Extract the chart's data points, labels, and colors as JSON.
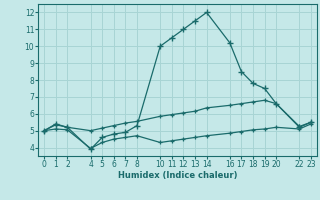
{
  "xlabel": "Humidex (Indice chaleur)",
  "bg_color": "#c5e8e8",
  "grid_color": "#a8d4d4",
  "line_color": "#1a6b6b",
  "xlim": [
    -0.5,
    23.5
  ],
  "ylim": [
    3.5,
    12.5
  ],
  "xticks": [
    0,
    1,
    2,
    4,
    5,
    6,
    7,
    8,
    10,
    11,
    12,
    13,
    14,
    16,
    17,
    18,
    19,
    20,
    22,
    23
  ],
  "yticks": [
    4,
    5,
    6,
    7,
    8,
    9,
    10,
    11,
    12
  ],
  "line1_x": [
    0,
    1,
    2,
    4,
    5,
    6,
    7,
    8,
    10,
    11,
    12,
    13,
    14,
    16,
    17,
    18,
    19,
    20,
    22,
    23
  ],
  "line1_y": [
    5.0,
    5.4,
    5.2,
    3.9,
    4.6,
    4.8,
    4.9,
    5.3,
    10.0,
    10.5,
    11.0,
    11.5,
    12.0,
    10.2,
    8.5,
    7.8,
    7.5,
    6.6,
    5.2,
    5.5
  ],
  "line2_x": [
    0,
    1,
    2,
    4,
    5,
    6,
    7,
    8,
    10,
    11,
    12,
    13,
    14,
    16,
    17,
    18,
    19,
    20,
    22,
    23
  ],
  "line2_y": [
    5.0,
    5.35,
    5.2,
    5.0,
    5.15,
    5.3,
    5.45,
    5.55,
    5.85,
    5.95,
    6.05,
    6.15,
    6.35,
    6.5,
    6.6,
    6.7,
    6.8,
    6.6,
    5.25,
    5.5
  ],
  "line3_x": [
    0,
    1,
    2,
    4,
    5,
    6,
    7,
    8,
    10,
    11,
    12,
    13,
    14,
    16,
    17,
    18,
    19,
    20,
    22,
    23
  ],
  "line3_y": [
    5.0,
    5.1,
    5.05,
    3.95,
    4.3,
    4.5,
    4.6,
    4.7,
    4.3,
    4.4,
    4.5,
    4.6,
    4.7,
    4.85,
    4.95,
    5.05,
    5.1,
    5.2,
    5.1,
    5.4
  ]
}
